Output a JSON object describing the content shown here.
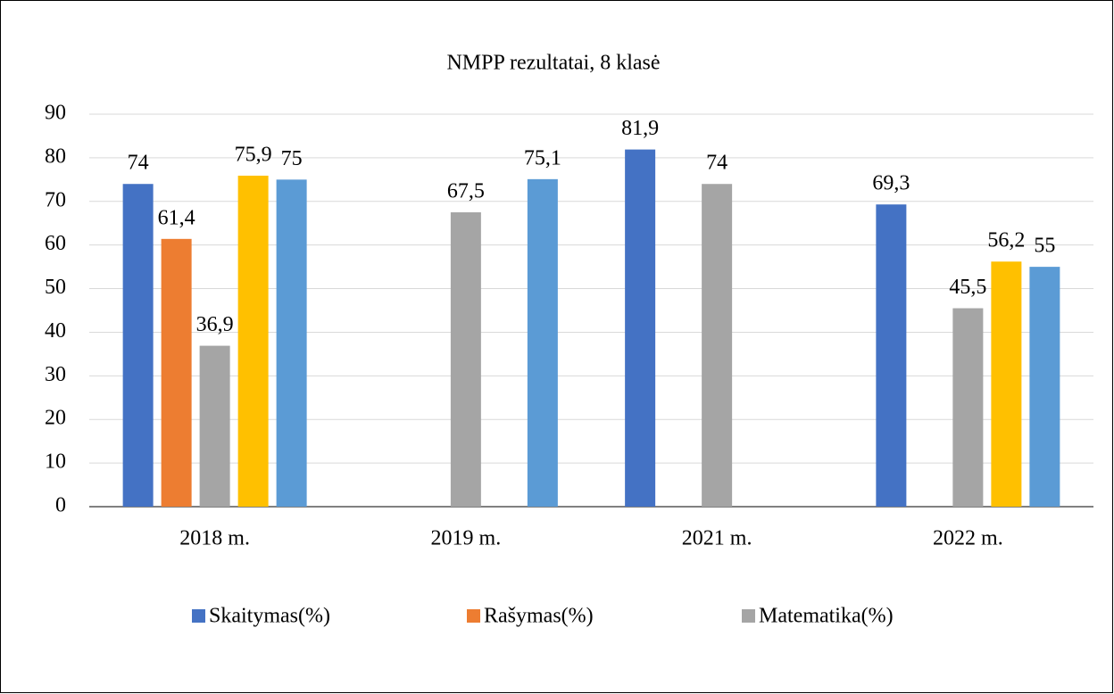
{
  "chart_data": {
    "type": "bar",
    "title": "NMPP rezultatai, 8 klasė",
    "categories": [
      "2018 m.",
      "2019 m.",
      "2021 m.",
      "2022 m."
    ],
    "series": [
      {
        "name": "Skaitymas(%)",
        "color": "#4472c4",
        "values": [
          74,
          null,
          81.9,
          69.3
        ],
        "value_labels": [
          "74",
          null,
          "81,9",
          "69,3"
        ]
      },
      {
        "name": "Rašymas(%)",
        "color": "#ed7d31",
        "values": [
          61.4,
          null,
          null,
          null
        ],
        "value_labels": [
          "61,4",
          null,
          null,
          null
        ]
      },
      {
        "name": "Matematika(%)",
        "color": "#a5a5a5",
        "values": [
          36.9,
          67.5,
          74,
          45.5
        ],
        "value_labels": [
          "36,9",
          "67,5",
          "74",
          "45,5"
        ]
      },
      {
        "color": "#ffc000",
        "values": [
          75.9,
          null,
          null,
          56.2
        ],
        "value_labels": [
          "75,9",
          null,
          null,
          "56,2"
        ]
      },
      {
        "color": "#5b9bd5",
        "values": [
          75,
          75.1,
          null,
          55
        ],
        "value_labels": [
          "75",
          "75,1",
          null,
          "55"
        ]
      }
    ],
    "ylim": [
      0,
      90
    ],
    "yticks": [
      0,
      10,
      20,
      30,
      40,
      50,
      60,
      70,
      80,
      90
    ],
    "grid": true,
    "legend": "bottom"
  }
}
